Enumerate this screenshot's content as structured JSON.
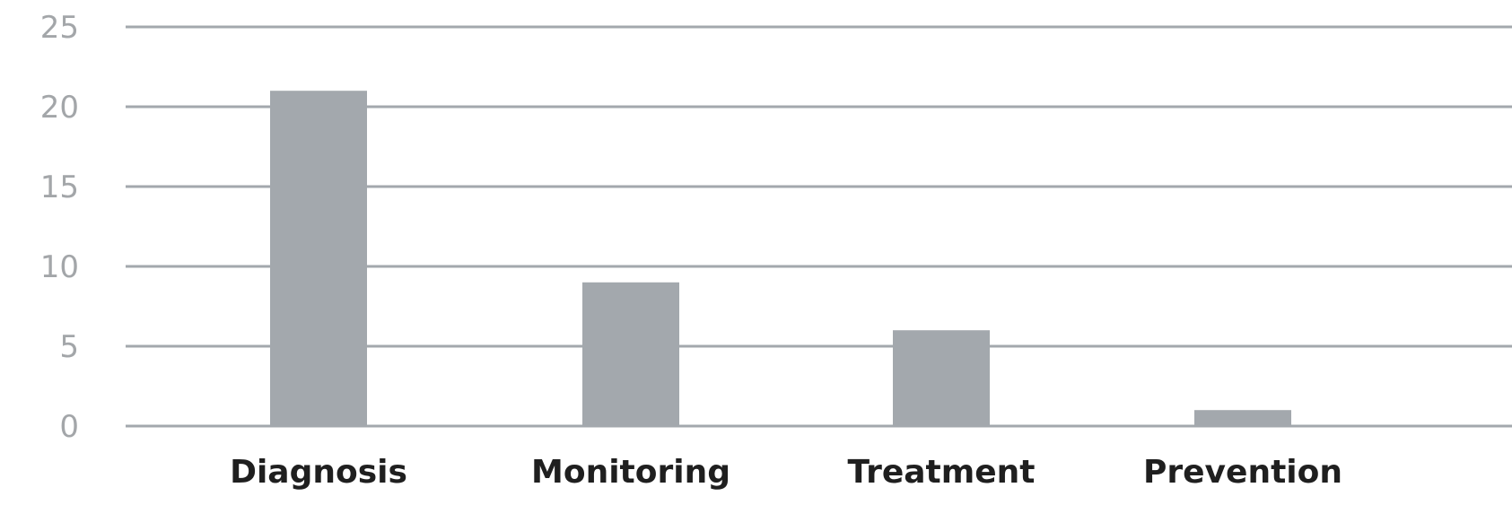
{
  "chart_data": {
    "type": "bar",
    "categories": [
      "Diagnosis",
      "Monitoring",
      "Treatment",
      "Prevention"
    ],
    "values": [
      21,
      9,
      6,
      1
    ],
    "ylim": [
      0,
      25
    ],
    "yticks": [
      0,
      5,
      10,
      15,
      20,
      25
    ],
    "grid": true,
    "legend": "none",
    "bar_color": "#a3a8ad",
    "grid_color": "#a3a8ad"
  }
}
